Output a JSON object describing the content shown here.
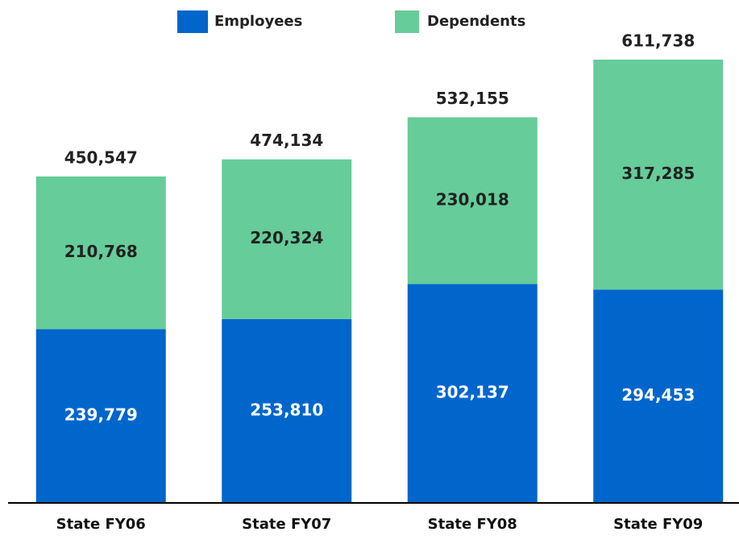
{
  "chart_data": {
    "type": "stacked_bar",
    "categories": [
      "State FY06",
      "State FY07",
      "State FY08",
      "State FY09"
    ],
    "series": [
      {
        "name": "Employees",
        "color": "#0066cc",
        "values": [
          239779,
          253810,
          302137,
          294453
        ],
        "value_labels": [
          "239,779",
          "253,810",
          "302,137",
          "294,453"
        ]
      },
      {
        "name": "Dependents",
        "color": "#66cc99",
        "values": [
          210768,
          220324,
          230018,
          317285
        ],
        "value_labels": [
          "210,768",
          "220,324",
          "230,018",
          "317,285"
        ]
      }
    ],
    "totals": [
      450547,
      474134,
      532155,
      611738
    ],
    "total_labels": [
      "450,547",
      "474,134",
      "532,155",
      "611,738"
    ],
    "ylim": [
      0,
      694000
    ],
    "legend": "top"
  }
}
